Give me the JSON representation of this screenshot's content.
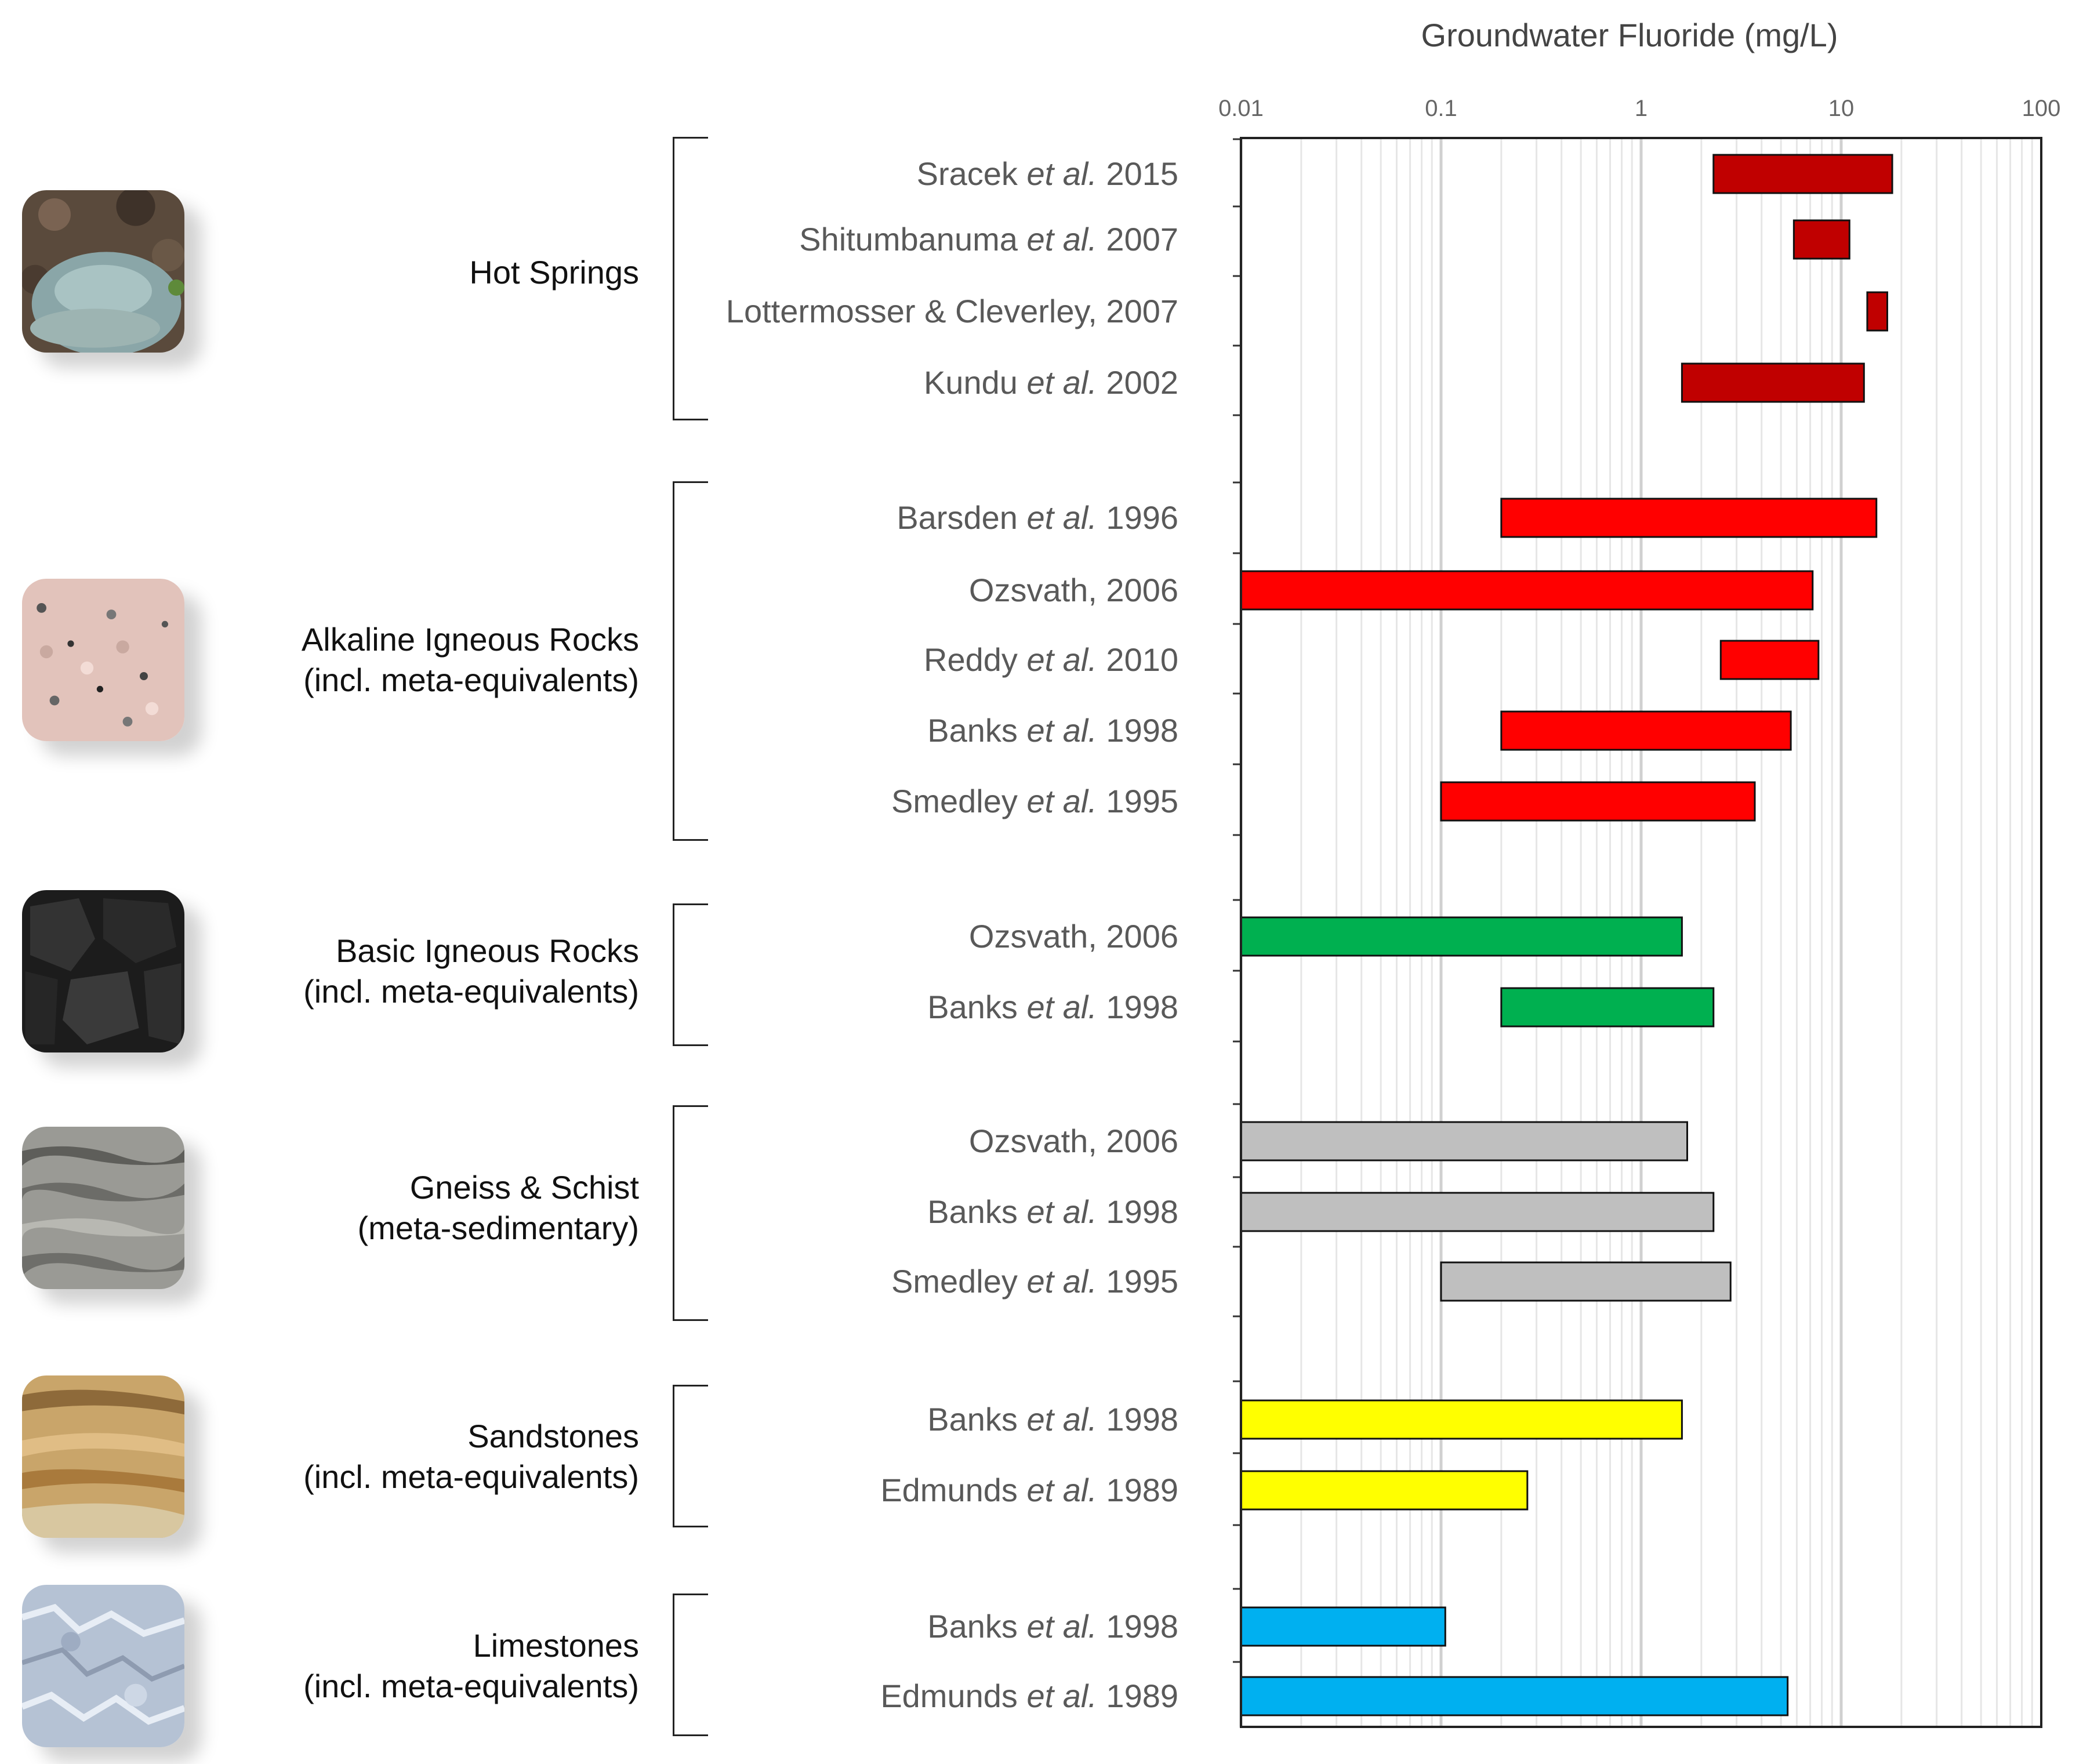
{
  "chart_data": {
    "type": "bar",
    "orientation": "horizontal-range",
    "title": "Groundwater Fluoride (mg/L)",
    "xlabel": "Groundwater Fluoride (mg/L)",
    "x_scale": "log",
    "xlim": [
      0.01,
      100
    ],
    "x_ticks": [
      "0.01",
      "0.1",
      "1",
      "10",
      "100"
    ],
    "grid": "vertical minor and major",
    "groups": [
      {
        "name": "Hot Springs",
        "name_line2": "",
        "color": "#c00000",
        "image": "hot-spring-photo",
        "bars": [
          {
            "ref": "Sracek",
            "etal": true,
            "year": "2015",
            "min": 2.3,
            "max": 18
          },
          {
            "ref": "Shitumbanuma",
            "etal": true,
            "year": "2007",
            "min": 5.8,
            "max": 11
          },
          {
            "ref": "Lottermosser & Cleverley, 2007",
            "etal": false,
            "year": "",
            "min": 13.5,
            "max": 17
          },
          {
            "ref": "Kundu",
            "etal": true,
            "year": "2002",
            "min": 1.6,
            "max": 13
          }
        ]
      },
      {
        "name": "Alkaline Igneous Rocks",
        "name_line2": "(incl. meta-equivalents)",
        "color": "#ff0000",
        "image": "granite-photo",
        "bars": [
          {
            "ref": "Barsden",
            "etal": true,
            "year": "1996",
            "min": 0.2,
            "max": 15
          },
          {
            "ref": "Ozsvath, 2006",
            "etal": false,
            "year": "",
            "min": 0.01,
            "max": 7.2
          },
          {
            "ref": "Reddy",
            "etal": true,
            "year": "2010",
            "min": 2.5,
            "max": 7.7
          },
          {
            "ref": "Banks",
            "etal": true,
            "year": "1998",
            "min": 0.2,
            "max": 5.6
          },
          {
            "ref": "Smedley",
            "etal": true,
            "year": "1995",
            "min": 0.1,
            "max": 3.7
          }
        ]
      },
      {
        "name": "Basic Igneous Rocks",
        "name_line2": "(incl. meta-equivalents)",
        "color": "#00b050",
        "image": "basalt-photo",
        "bars": [
          {
            "ref": "Ozsvath, 2006",
            "etal": false,
            "year": "",
            "min": 0.01,
            "max": 1.6
          },
          {
            "ref": "Banks",
            "etal": true,
            "year": "1998",
            "min": 0.2,
            "max": 2.3
          }
        ]
      },
      {
        "name": "Gneiss & Schist",
        "name_line2": "(meta-sedimentary)",
        "color": "#bfbfbf",
        "image": "gneiss-photo",
        "bars": [
          {
            "ref": "Ozsvath, 2006",
            "etal": false,
            "year": "",
            "min": 0.01,
            "max": 1.7
          },
          {
            "ref": "Banks",
            "etal": true,
            "year": "1998",
            "min": 0.01,
            "max": 2.3
          },
          {
            "ref": "Smedley",
            "etal": true,
            "year": "1995",
            "min": 0.1,
            "max": 2.8
          }
        ]
      },
      {
        "name": "Sandstones",
        "name_line2": "(incl. meta-equivalents)",
        "color": "#ffff00",
        "image": "sandstone-photo",
        "bars": [
          {
            "ref": "Banks",
            "etal": true,
            "year": "1998",
            "min": 0.01,
            "max": 1.6
          },
          {
            "ref": "Edmunds",
            "etal": true,
            "year": "1989",
            "min": 0.01,
            "max": 0.27
          }
        ]
      },
      {
        "name": "Limestones",
        "name_line2": "(incl. meta-equivalents)",
        "color": "#00b0f0",
        "image": "limestone-photo",
        "bars": [
          {
            "ref": "Banks",
            "etal": true,
            "year": "1998",
            "min": 0.01,
            "max": 0.105
          },
          {
            "ref": "Edmunds",
            "etal": true,
            "year": "1989",
            "min": 0.01,
            "max": 5.4
          }
        ]
      }
    ]
  },
  "etal_text": "et al."
}
